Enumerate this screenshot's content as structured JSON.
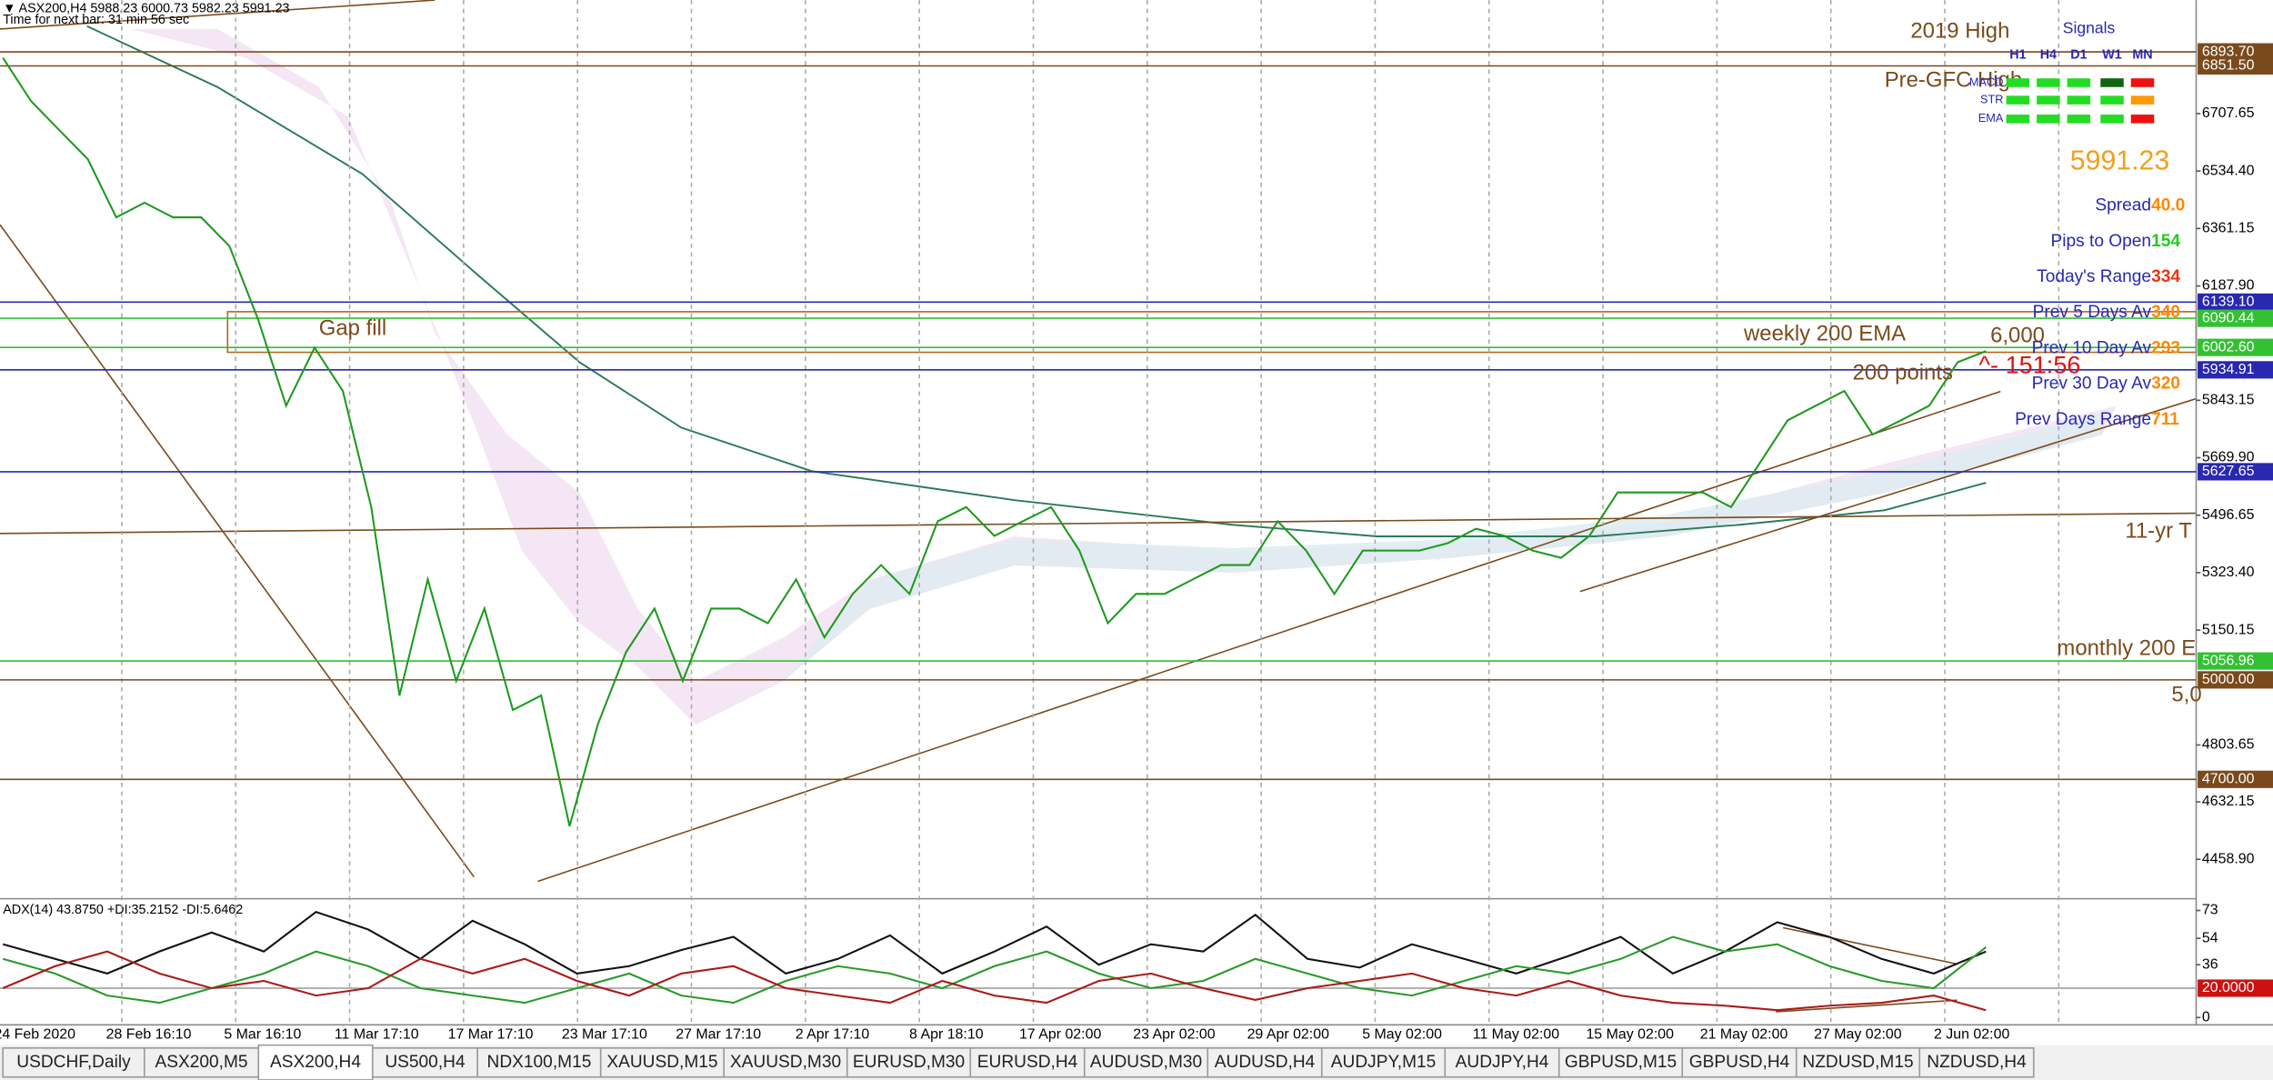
{
  "header": {
    "symbol_line": "▼ ASX200,H4  5988.23 6000.73 5982.23 5991.23",
    "timer": "Time for next bar: 31 min 56 sec"
  },
  "chart_data": [
    {
      "type": "line",
      "color": "#1f9a1f",
      "values": [
        6876,
        6745,
        6657,
        6570,
        6395,
        6439,
        6395,
        6395,
        6308,
        6089,
        5827,
        6002,
        5871,
        5521,
        4953,
        5303,
        4997,
        5215,
        4909,
        4953,
        4559,
        4866,
        5084,
        5215,
        4997,
        5215,
        5215,
        5171,
        5303,
        5128,
        5259,
        5346,
        5259,
        5478,
        5521,
        5434,
        5478,
        5521,
        5390,
        5171,
        5259,
        5259,
        5303,
        5346,
        5346,
        5478,
        5390,
        5259,
        5390,
        5390,
        5390,
        5412,
        5456,
        5434,
        5390,
        5368,
        5434,
        5565,
        5565,
        5565,
        5565,
        5521,
        5652,
        5783,
        5827,
        5871,
        5740,
        5783,
        5827,
        5958,
        5991.23
      ],
      "xtick_labels": [
        "24 Feb 2020",
        "28 Feb 16:10",
        "5 Mar 16:10",
        "11 Mar 17:10",
        "17 Mar 17:10",
        "23 Mar 17:10",
        "27 Mar 17:10",
        "2 Apr 17:10",
        "8 Apr 18:10",
        "17 Apr 02:00",
        "23 Apr 02:00",
        "29 Apr 02:00",
        "5 May 02:00",
        "11 May 02:00",
        "15 May 02:00",
        "21 May 02:00",
        "27 May 02:00",
        "2 Jun 02:00"
      ],
      "ylim": [
        4340,
        7050
      ],
      "yticks": [
        {
          "value": 6707.65,
          "label": "6707.65"
        },
        {
          "value": 6534.4,
          "label": "6534.40"
        },
        {
          "value": 6361.15,
          "label": "6361.15"
        },
        {
          "value": 6187.9,
          "label": "6187.90"
        },
        {
          "value": 5843.15,
          "label": "5843.15"
        },
        {
          "value": 5669.9,
          "label": "5669.90"
        },
        {
          "value": 5496.65,
          "label": "5496.65"
        },
        {
          "value": 5323.4,
          "label": "5323.40"
        },
        {
          "value": 5150.15,
          "label": "5150.15"
        },
        {
          "value": 4803.65,
          "label": "4803.65"
        },
        {
          "value": 4632.15,
          "label": "4632.15"
        },
        {
          "value": 4458.9,
          "label": "4458.90"
        }
      ],
      "levels": [
        {
          "value": 6893.7,
          "label": "6893.70",
          "color": "#7a4a1c"
        },
        {
          "value": 6851.5,
          "label": "6851.50",
          "color": "#7a4a1c"
        },
        {
          "value": 6139.1,
          "label": "6139.10",
          "color": "#2828b0"
        },
        {
          "value": 6090.44,
          "label": "6090.44",
          "color": "#33c033"
        },
        {
          "value": 6002.6,
          "label": "6002.60",
          "color": "#33c033"
        },
        {
          "value": 5934.91,
          "label": "5934.91",
          "color": "#2828b0"
        },
        {
          "value": 5627.65,
          "label": "5627.65",
          "color": "#2828b0"
        },
        {
          "value": 5056.96,
          "label": "5056.96",
          "color": "#33c033"
        },
        {
          "value": 5000,
          "label": "5000.00",
          "color": "#7a4a1c"
        },
        {
          "value": 4700,
          "label": "4700.00",
          "color": "#7a4a1c"
        }
      ],
      "annotations": [
        "2019 High",
        "Pre-GFC High",
        "Gap fill",
        "weekly 200 EMA",
        "6,000",
        "200 points",
        "^- 151:56",
        "11-yr T",
        "monthly 200 E",
        "5,0"
      ],
      "last_price": "5991.23"
    },
    {
      "type": "line",
      "title": "ADX(14) 43.8750 +DI:35.2152 -DI:5.6462",
      "ylim": [
        -5,
        81
      ],
      "yticks": [
        73,
        54,
        36,
        0
      ],
      "levels": [
        {
          "value": 20,
          "label": "20.0000",
          "color": "#cc1111"
        }
      ],
      "series": [
        {
          "color": "#111111",
          "values": [
            50,
            40,
            30,
            45,
            58,
            45,
            72,
            60,
            40,
            66,
            50,
            30,
            35,
            46,
            55,
            30,
            40,
            56,
            30,
            45,
            62,
            36,
            50,
            45,
            70,
            40,
            34,
            50,
            40,
            30,
            42,
            55,
            30,
            45,
            65,
            55,
            40,
            30,
            45
          ]
        },
        {
          "color": "#2a9a2a",
          "values": [
            40,
            30,
            15,
            10,
            20,
            30,
            45,
            35,
            20,
            15,
            10,
            20,
            30,
            15,
            10,
            25,
            35,
            30,
            20,
            35,
            45,
            30,
            20,
            25,
            40,
            30,
            20,
            15,
            25,
            35,
            30,
            40,
            55,
            45,
            50,
            35,
            25,
            20,
            48
          ]
        },
        {
          "color": "#aa1a1a",
          "values": [
            20,
            35,
            45,
            30,
            20,
            25,
            15,
            20,
            40,
            30,
            40,
            25,
            15,
            30,
            35,
            20,
            15,
            10,
            25,
            15,
            10,
            25,
            30,
            20,
            12,
            20,
            25,
            30,
            20,
            15,
            25,
            15,
            10,
            8,
            5,
            8,
            10,
            15,
            5
          ]
        }
      ]
    }
  ],
  "signals": {
    "title": "Signals",
    "columns": [
      "H1",
      "H4",
      "D1",
      "W1",
      "MN"
    ],
    "rows": [
      "MACD",
      "STR",
      "EMA"
    ],
    "cells": [
      [
        "#22dd22",
        "#22dd22",
        "#22dd22",
        "#116611",
        "#ee1111"
      ],
      [
        "#22dd22",
        "#22dd22",
        "#22dd22",
        "#22dd22",
        "#ff9900"
      ],
      [
        "#22dd22",
        "#22dd22",
        "#22dd22",
        "#22dd22",
        "#ee1111"
      ]
    ]
  },
  "info_panel": [
    {
      "label": "Spread",
      "value": "40.0",
      "color": "#ff8800"
    },
    {
      "label": "Pips to Open",
      "value": "154",
      "color": "#22cc22"
    },
    {
      "label": "Today's Range",
      "value": "334",
      "color": "#ee3311"
    },
    {
      "label": "Prev 5 Days Av",
      "value": "340",
      "color": "#ff8800"
    },
    {
      "label": "Prev 10 Day Av",
      "value": "293",
      "color": "#ff8800"
    },
    {
      "label": "Prev 30 Day Av",
      "value": "320",
      "color": "#ff8800"
    },
    {
      "label": "Prev Days Range",
      "value": "711",
      "color": "#ff8800"
    }
  ],
  "tabs": [
    "USDCHF,Daily",
    "ASX200,M5",
    "ASX200,H4",
    "US500,H4",
    "NDX100,M15",
    "XAUUSD,M15",
    "XAUUSD,M30",
    "EURUSD,M30",
    "EURUSD,H4",
    "AUDUSD,M30",
    "AUDUSD,H4",
    "AUDJPY,M15",
    "AUDJPY,H4",
    "GBPUSD,M15",
    "GBPUSD,H4",
    "NZDUSD,M15",
    "NZDUSD,H4"
  ],
  "active_tab": 2
}
